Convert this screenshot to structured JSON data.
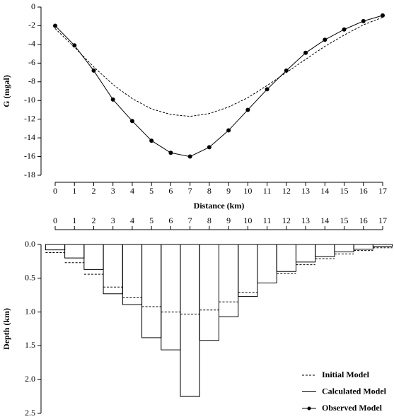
{
  "chart_data": [
    {
      "type": "line",
      "ylabel": "G (mgal)",
      "xlabel": "Distance (km)",
      "x": [
        0,
        1,
        2,
        3,
        4,
        5,
        6,
        7,
        8,
        9,
        10,
        11,
        12,
        13,
        14,
        15,
        16,
        17
      ],
      "xlim": [
        0,
        17
      ],
      "xticks": [
        0,
        1,
        2,
        3,
        4,
        5,
        6,
        7,
        8,
        9,
        10,
        11,
        12,
        13,
        14,
        15,
        16,
        17
      ],
      "xaxis_position": "bottom",
      "ylim": [
        0,
        -18
      ],
      "yticks": [
        0,
        -2,
        -4,
        -6,
        -8,
        -10,
        -12,
        -14,
        -16,
        -18
      ],
      "series": [
        {
          "style": "dashed",
          "color": "#000000",
          "values": [
            -2.3,
            -4.3,
            -6.4,
            -8.3,
            -9.8,
            -10.9,
            -11.5,
            -11.7,
            -11.4,
            -10.7,
            -9.7,
            -8.4,
            -7.0,
            -5.6,
            -4.2,
            -3.0,
            -1.9,
            -1.1
          ]
        },
        {
          "style": "solid",
          "color": "#000000",
          "values": [
            -2.0,
            -4.1,
            -6.8,
            -9.9,
            -12.2,
            -14.3,
            -15.6,
            -16.0,
            -15.0,
            -13.2,
            -11.0,
            -8.8,
            -6.8,
            -4.9,
            -3.5,
            -2.4,
            -1.5,
            -0.9
          ]
        },
        {
          "style": "marker",
          "color": "#000000",
          "values": [
            -2.0,
            -4.1,
            -6.8,
            -9.9,
            -12.2,
            -14.3,
            -15.6,
            -16.0,
            -15.0,
            -13.2,
            -11.0,
            -8.8,
            -6.8,
            -4.9,
            -3.5,
            -2.4,
            -1.5,
            -0.9
          ]
        }
      ]
    },
    {
      "type": "bar",
      "ylabel": "Depth (km)",
      "x": [
        0,
        1,
        2,
        3,
        4,
        5,
        6,
        7,
        8,
        9,
        10,
        11,
        12,
        13,
        14,
        15,
        16,
        17
      ],
      "xlim": [
        0,
        17
      ],
      "xticks": [
        0,
        1,
        2,
        3,
        4,
        5,
        6,
        7,
        8,
        9,
        10,
        11,
        12,
        13,
        14,
        15,
        16,
        17
      ],
      "xaxis_position": "top",
      "ylim": [
        0,
        2.5
      ],
      "yticks": [
        {
          "value": 0,
          "label": "0.0"
        },
        0.5,
        {
          "value": 1,
          "label": "1.0"
        },
        1.5,
        {
          "value": 2,
          "label": "2.0"
        },
        2.5
      ],
      "series": [
        {
          "style": "solid",
          "color": "#000000",
          "values": [
            0.08,
            0.2,
            0.37,
            0.73,
            0.89,
            1.38,
            1.56,
            2.25,
            1.42,
            1.07,
            0.77,
            0.57,
            0.4,
            0.26,
            0.18,
            0.11,
            0.07,
            0.03
          ]
        },
        {
          "style": "dashed",
          "color": "#000000",
          "values": [
            0.12,
            0.27,
            0.44,
            0.63,
            0.79,
            0.92,
            1.0,
            1.03,
            0.97,
            0.85,
            0.71,
            0.57,
            0.43,
            0.3,
            0.21,
            0.14,
            0.09,
            0.05
          ]
        }
      ],
      "legend_position": "lower right",
      "legend": [
        {
          "label": "Initial Model",
          "style": "dashed"
        },
        {
          "label": "Calculated Model",
          "style": "solid"
        },
        {
          "label": "Observed Model",
          "style": "marker"
        }
      ]
    }
  ]
}
